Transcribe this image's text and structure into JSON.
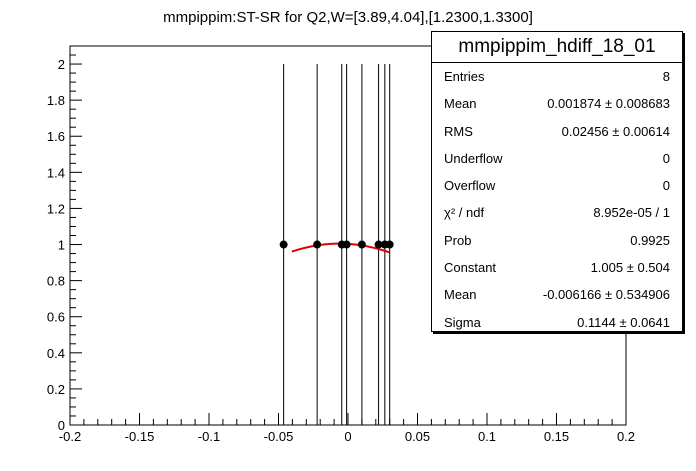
{
  "chart_data": {
    "type": "scatter",
    "title": "mmpippim:ST-SR for Q2,W=[3.89,4.04],[1.2300,1.3300]",
    "xlim": [
      -0.2,
      0.2
    ],
    "ylim": [
      0,
      2.1
    ],
    "x_ticks": [
      "-0.2",
      "-0.15",
      "-0.1",
      "-0.05",
      "0",
      "0.05",
      "0.1",
      "0.15",
      "0.2"
    ],
    "x_tick_values": [
      -0.2,
      -0.15,
      -0.1,
      -0.05,
      0,
      0.05,
      0.1,
      0.15,
      0.2
    ],
    "y_ticks": [
      "0",
      "0.2",
      "0.4",
      "0.6",
      "0.8",
      "1",
      "1.2",
      "1.4",
      "1.6",
      "1.8",
      "2"
    ],
    "y_tick_values": [
      0,
      0.2,
      0.4,
      0.6,
      0.8,
      1,
      1.2,
      1.4,
      1.6,
      1.8,
      2
    ],
    "points": [
      {
        "x": -0.0463,
        "y": 1,
        "err_low": 0,
        "err_high": 2
      },
      {
        "x": -0.0222,
        "y": 1,
        "err_low": 0,
        "err_high": 2
      },
      {
        "x": -0.0045,
        "y": 1,
        "err_low": 0,
        "err_high": 2
      },
      {
        "x": -0.001,
        "y": 1,
        "err_low": 0,
        "err_high": 2
      },
      {
        "x": 0.01,
        "y": 1,
        "err_low": 0,
        "err_high": 2
      },
      {
        "x": 0.022,
        "y": 1,
        "err_low": 0,
        "err_high": 2
      },
      {
        "x": 0.0265,
        "y": 1,
        "err_low": 0,
        "err_high": 2
      },
      {
        "x": 0.03,
        "y": 1,
        "err_low": 0,
        "err_high": 2
      }
    ],
    "fit": {
      "type": "gaus",
      "constant": 1.005,
      "mean": -0.006166,
      "sigma": 0.1144,
      "x_range": [
        -0.0404,
        0.03
      ],
      "color": "#e00000"
    },
    "grid": false
  },
  "stats": {
    "name": "mmpippim_hdiff_18_01",
    "rows": [
      {
        "key": "Entries",
        "value": "8"
      },
      {
        "key": "Mean",
        "value": "0.001874 ± 0.008683"
      },
      {
        "key": "RMS",
        "value": "0.02456 ± 0.00614"
      },
      {
        "key": "Underflow",
        "value": "0"
      },
      {
        "key": "Overflow",
        "value": "0"
      },
      {
        "key": "χ² / ndf",
        "value": "8.952e-05 / 1"
      },
      {
        "key": "Prob",
        "value": "0.9925"
      },
      {
        "key": "Constant",
        "value": "1.005 ± 0.504"
      },
      {
        "key": "Mean",
        "value": "-0.006166 ± 0.534906"
      },
      {
        "key": "Sigma",
        "value": "0.1144 ± 0.0641"
      }
    ]
  }
}
